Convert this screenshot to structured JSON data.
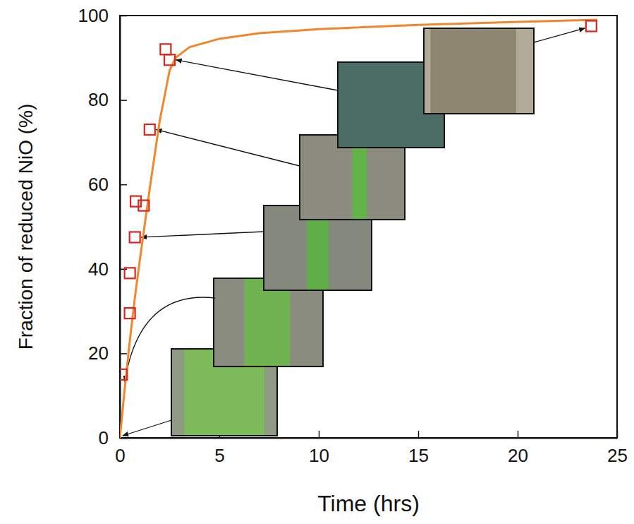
{
  "chart_data": {
    "type": "scatter",
    "x_label": "Time (hrs)",
    "y_label": "Fraction of reduced NiO  (%)",
    "xlim": [
      0,
      25
    ],
    "ylim": [
      0,
      100
    ],
    "xticks": [
      0,
      5,
      10,
      15,
      20,
      25
    ],
    "yticks": [
      0,
      20,
      40,
      60,
      80,
      100
    ],
    "grid": false,
    "series": [
      {
        "type": "scatter",
        "marker": "square",
        "color": "#d9261c",
        "x": [
          0.1,
          0.5,
          0.5,
          0.75,
          0.8,
          1.2,
          1.5,
          2.3,
          2.5,
          23.7
        ],
        "values": [
          15,
          29.5,
          39,
          47.5,
          56,
          55,
          73,
          92,
          89.5,
          97.5
        ]
      },
      {
        "type": "line",
        "line_style": "solid",
        "color": "#f0862e",
        "x": [
          0,
          0.25,
          0.5,
          0.75,
          1,
          1.5,
          2,
          2.5,
          2.8,
          3.5,
          5,
          7,
          10,
          15,
          20,
          24
        ],
        "values": [
          0,
          12,
          23,
          33,
          42,
          59,
          75,
          87,
          90,
          92.5,
          94.5,
          95.8,
          96.8,
          97.8,
          98.5,
          99
        ]
      }
    ]
  }
}
